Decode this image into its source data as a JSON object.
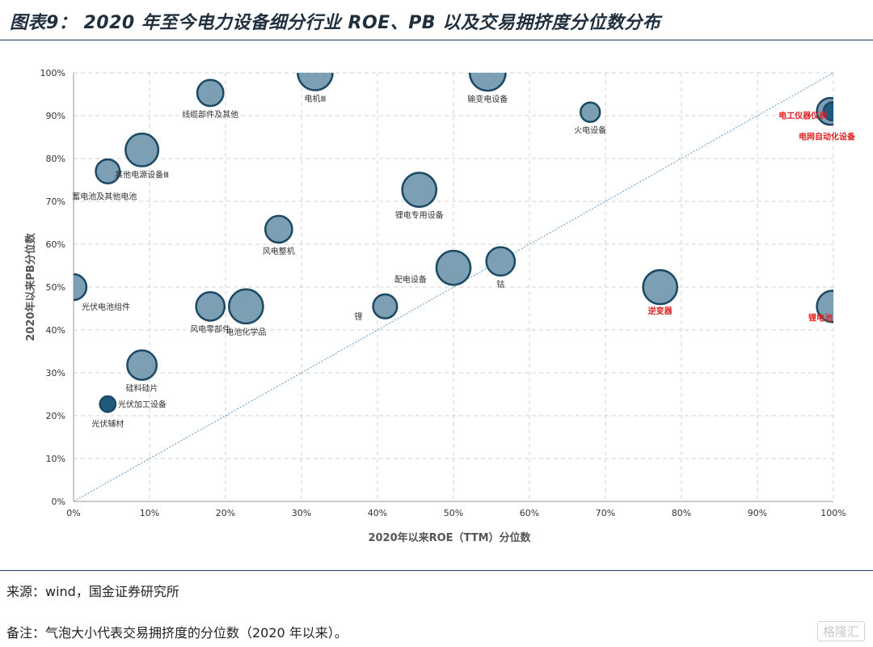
{
  "header": {
    "title": "图表9： 2020 年至今电力设备细分行业 ROE、PB 以及交易拥挤度分位数分布"
  },
  "footer": {
    "source": "来源：wind，国金证券研究所",
    "note": "备注：气泡大小代表交易拥挤度的分位数（2020 年以来）。",
    "watermark": "格隆汇"
  },
  "colors": {
    "bubble_fill": "#7c9fb4",
    "bubble_stroke": "#1b4965",
    "dark_bubble_fill": "#1f5a7d",
    "highlight_label": "#e01f1f",
    "diagonal": "#5b9bd5",
    "grid": "#d0d0d0"
  },
  "chart_data": {
    "type": "bubble",
    "xlabel": "2020年以来ROE（TTM）分位数",
    "ylabel": "2020年以来PB分位数",
    "xlim": [
      0,
      100
    ],
    "ylim": [
      0,
      100
    ],
    "x_ticks": [
      "0%",
      "10%",
      "20%",
      "30%",
      "40%",
      "50%",
      "60%",
      "70%",
      "80%",
      "90%",
      "100%"
    ],
    "y_ticks": [
      "0%",
      "10%",
      "20%",
      "30%",
      "40%",
      "50%",
      "60%",
      "70%",
      "80%",
      "90%",
      "100%"
    ],
    "grid": true,
    "reference_line": "y = x",
    "bubble_size_meaning": "交易拥挤度分位数",
    "points": [
      {
        "name": "电机Ⅲ",
        "x": 31.8,
        "y": 100,
        "size": 58,
        "highlight": false,
        "dark": false,
        "label_pos": "below"
      },
      {
        "name": "输变电设备",
        "x": 54.5,
        "y": 100,
        "size": 62,
        "highlight": false,
        "dark": false,
        "label_pos": "below"
      },
      {
        "name": "线缆部件及其他",
        "x": 18,
        "y": 95.3,
        "size": 28,
        "highlight": false,
        "dark": false,
        "label_pos": "below"
      },
      {
        "name": "火电设备",
        "x": 68,
        "y": 90.8,
        "size": 12,
        "highlight": false,
        "dark": false,
        "label_pos": "below"
      },
      {
        "name": "电工仪器仪表",
        "x": 99.6,
        "y": 91,
        "size": 30,
        "highlight": true,
        "dark": false,
        "label_pos": "left"
      },
      {
        "name": "电网自动化设备",
        "x": 99.9,
        "y": 91,
        "size": 10,
        "highlight": true,
        "dark": true,
        "label_pos": "below-left"
      },
      {
        "name": "其他电源设备Ⅲ",
        "x": 9,
        "y": 82,
        "size": 50,
        "highlight": false,
        "dark": false,
        "label_pos": "below"
      },
      {
        "name": "蓄电池及其他电池",
        "x": 4.5,
        "y": 77,
        "size": 22,
        "highlight": false,
        "dark": false,
        "label_pos": "below"
      },
      {
        "name": "锂电专用设备",
        "x": 45.5,
        "y": 72.7,
        "size": 55,
        "highlight": false,
        "dark": false,
        "label_pos": "below"
      },
      {
        "name": "风电整机",
        "x": 27,
        "y": 63.5,
        "size": 30,
        "highlight": false,
        "dark": false,
        "label_pos": "below"
      },
      {
        "name": "配电设备",
        "x": 50,
        "y": 54.5,
        "size": 55,
        "highlight": false,
        "dark": false,
        "label_pos": "left"
      },
      {
        "name": "钴",
        "x": 56.2,
        "y": 56,
        "size": 35,
        "highlight": false,
        "dark": false,
        "label_pos": "below"
      },
      {
        "name": "光伏电池组件",
        "x": 0,
        "y": 50,
        "size": 27,
        "highlight": false,
        "dark": false,
        "label_pos": "below"
      },
      {
        "name": "逆变器",
        "x": 77.2,
        "y": 50,
        "size": 55,
        "highlight": true,
        "dark": false,
        "label_pos": "below"
      },
      {
        "name": "风电零部件",
        "x": 18,
        "y": 45.5,
        "size": 35,
        "highlight": false,
        "dark": false,
        "label_pos": "below"
      },
      {
        "name": "电池化学品",
        "x": 22.7,
        "y": 45.5,
        "size": 55,
        "highlight": false,
        "dark": false,
        "label_pos": "below"
      },
      {
        "name": "锂",
        "x": 41,
        "y": 45.5,
        "size": 22,
        "highlight": false,
        "dark": false,
        "label_pos": "below-left"
      },
      {
        "name": "锂电池",
        "x": 99.9,
        "y": 45.5,
        "size": 45,
        "highlight": true,
        "dark": false,
        "label_pos": "below-left"
      },
      {
        "name": "硅料硅片",
        "x": 9,
        "y": 31.8,
        "size": 38,
        "highlight": false,
        "dark": false,
        "label_pos": "below"
      },
      {
        "name": "光伏加工设备",
        "x": 4.5,
        "y": 22.7,
        "size": 6,
        "highlight": false,
        "dark": true,
        "label_pos": "right"
      },
      {
        "name": "光伏辅材",
        "x": 4.5,
        "y": 22.7,
        "size": 4,
        "highlight": false,
        "dark": false,
        "label_pos": "below"
      }
    ]
  }
}
